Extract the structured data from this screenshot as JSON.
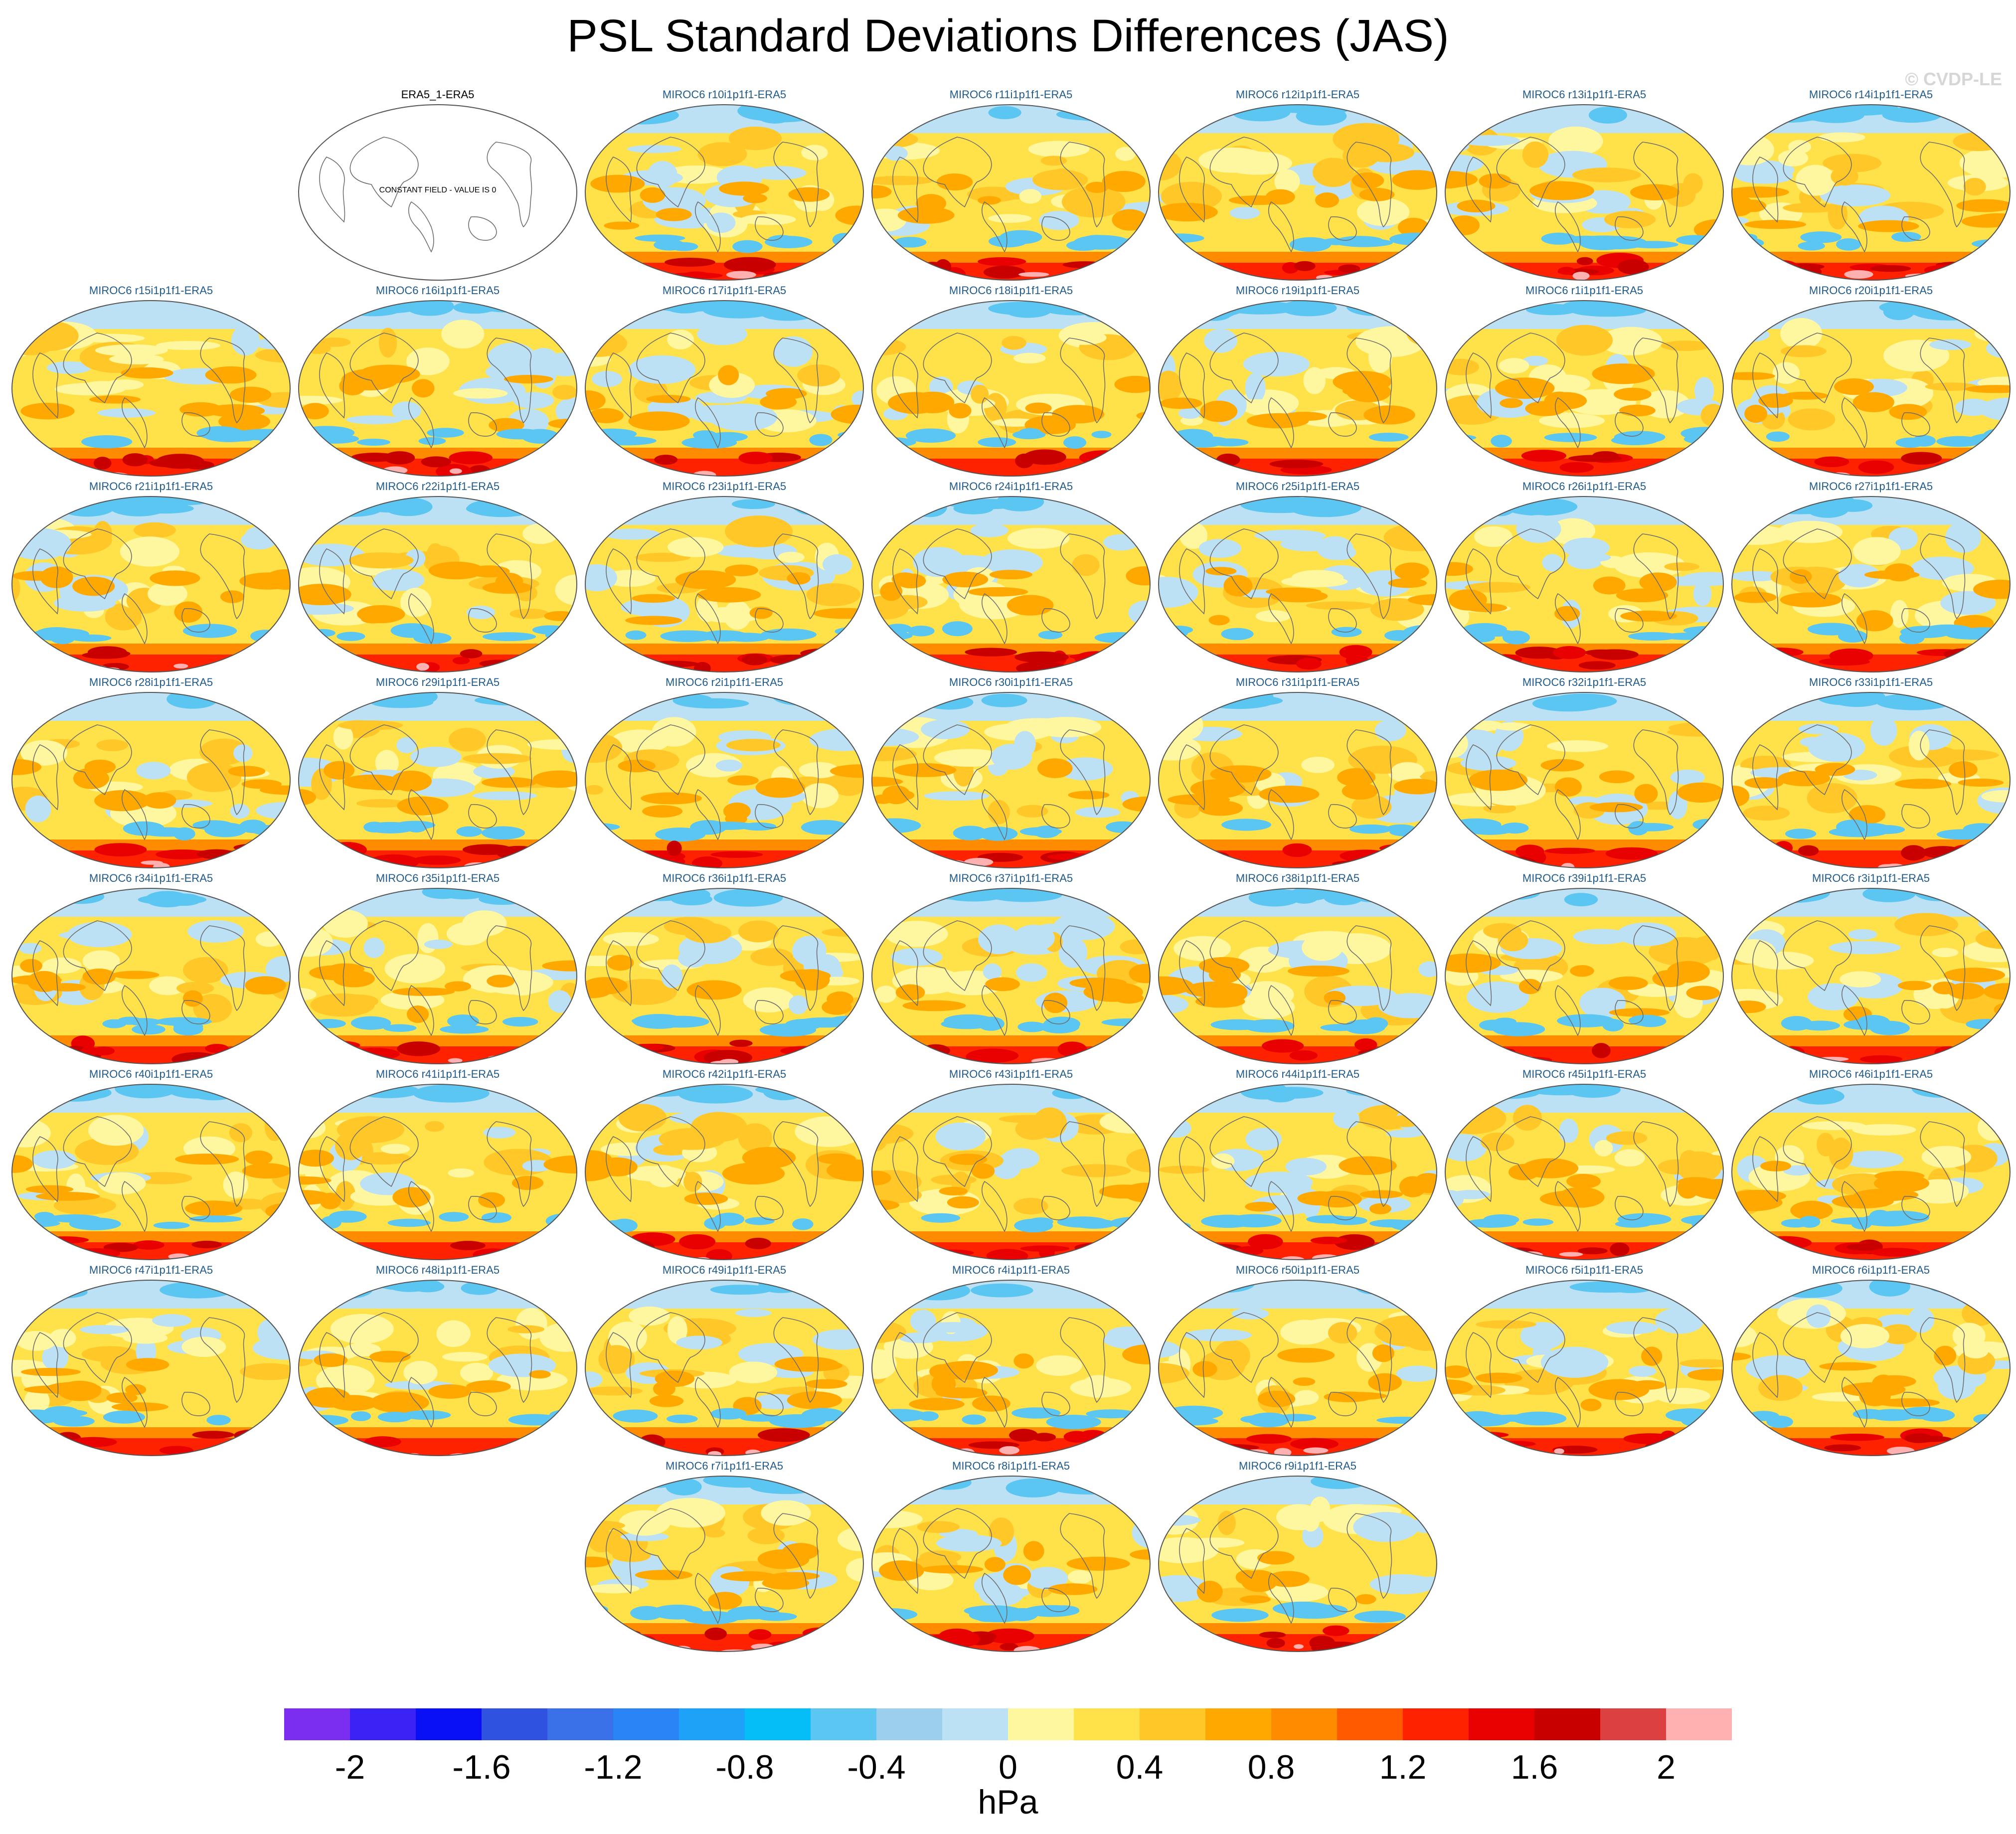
{
  "title": "PSL Standard Deviations Differences (JAS)",
  "watermark": "© CVDP-LE",
  "reference_panel": {
    "title": "ERA5_1-ERA5",
    "note": "CONSTANT FIELD - VALUE IS 0"
  },
  "panels": [
    "MIROC6 r10i1p1f1-ERA5",
    "MIROC6 r11i1p1f1-ERA5",
    "MIROC6 r12i1p1f1-ERA5",
    "MIROC6 r13i1p1f1-ERA5",
    "MIROC6 r14i1p1f1-ERA5",
    "MIROC6 r15i1p1f1-ERA5",
    "MIROC6 r16i1p1f1-ERA5",
    "MIROC6 r17i1p1f1-ERA5",
    "MIROC6 r18i1p1f1-ERA5",
    "MIROC6 r19i1p1f1-ERA5",
    "MIROC6 r1i1p1f1-ERA5",
    "MIROC6 r20i1p1f1-ERA5",
    "MIROC6 r21i1p1f1-ERA5",
    "MIROC6 r22i1p1f1-ERA5",
    "MIROC6 r23i1p1f1-ERA5",
    "MIROC6 r24i1p1f1-ERA5",
    "MIROC6 r25i1p1f1-ERA5",
    "MIROC6 r26i1p1f1-ERA5",
    "MIROC6 r27i1p1f1-ERA5",
    "MIROC6 r28i1p1f1-ERA5",
    "MIROC6 r29i1p1f1-ERA5",
    "MIROC6 r2i1p1f1-ERA5",
    "MIROC6 r30i1p1f1-ERA5",
    "MIROC6 r31i1p1f1-ERA5",
    "MIROC6 r32i1p1f1-ERA5",
    "MIROC6 r33i1p1f1-ERA5",
    "MIROC6 r34i1p1f1-ERA5",
    "MIROC6 r35i1p1f1-ERA5",
    "MIROC6 r36i1p1f1-ERA5",
    "MIROC6 r37i1p1f1-ERA5",
    "MIROC6 r38i1p1f1-ERA5",
    "MIROC6 r39i1p1f1-ERA5",
    "MIROC6 r3i1p1f1-ERA5",
    "MIROC6 r40i1p1f1-ERA5",
    "MIROC6 r41i1p1f1-ERA5",
    "MIROC6 r42i1p1f1-ERA5",
    "MIROC6 r43i1p1f1-ERA5",
    "MIROC6 r44i1p1f1-ERA5",
    "MIROC6 r45i1p1f1-ERA5",
    "MIROC6 r46i1p1f1-ERA5",
    "MIROC6 r47i1p1f1-ERA5",
    "MIROC6 r48i1p1f1-ERA5",
    "MIROC6 r49i1p1f1-ERA5",
    "MIROC6 r4i1p1f1-ERA5",
    "MIROC6 r50i1p1f1-ERA5",
    "MIROC6 r5i1p1f1-ERA5",
    "MIROC6 r6i1p1f1-ERA5",
    "MIROC6 r7i1p1f1-ERA5",
    "MIROC6 r8i1p1f1-ERA5",
    "MIROC6 r9i1p1f1-ERA5"
  ],
  "colorbar": {
    "label": "hPa",
    "levels": [
      -2,
      -1.8,
      -1.6,
      -1.4,
      -1.2,
      -1,
      -0.8,
      -0.6,
      -0.4,
      -0.2,
      0,
      0.2,
      0.4,
      0.6,
      0.8,
      1,
      1.2,
      1.4,
      1.6,
      1.8,
      2
    ],
    "tick_labels": [
      "-2",
      "-1.6",
      "-1.2",
      "-0.8",
      "-0.4",
      "0",
      "0.4",
      "0.8",
      "1.2",
      "1.6",
      "2"
    ],
    "colors": [
      "#7b2ef0",
      "#3b22f5",
      "#0a10f5",
      "#2f52e0",
      "#3a70e8",
      "#2a84f5",
      "#1ea2f8",
      "#05bdf7",
      "#5cc6f2",
      "#9ccfee",
      "#bde1f4",
      "#fff7a0",
      "#ffe24a",
      "#ffc828",
      "#ffa800",
      "#ff8c00",
      "#ff5a00",
      "#ff2200",
      "#e90000",
      "#c80000",
      "#dc4040",
      "#ffb0b0"
    ]
  }
}
